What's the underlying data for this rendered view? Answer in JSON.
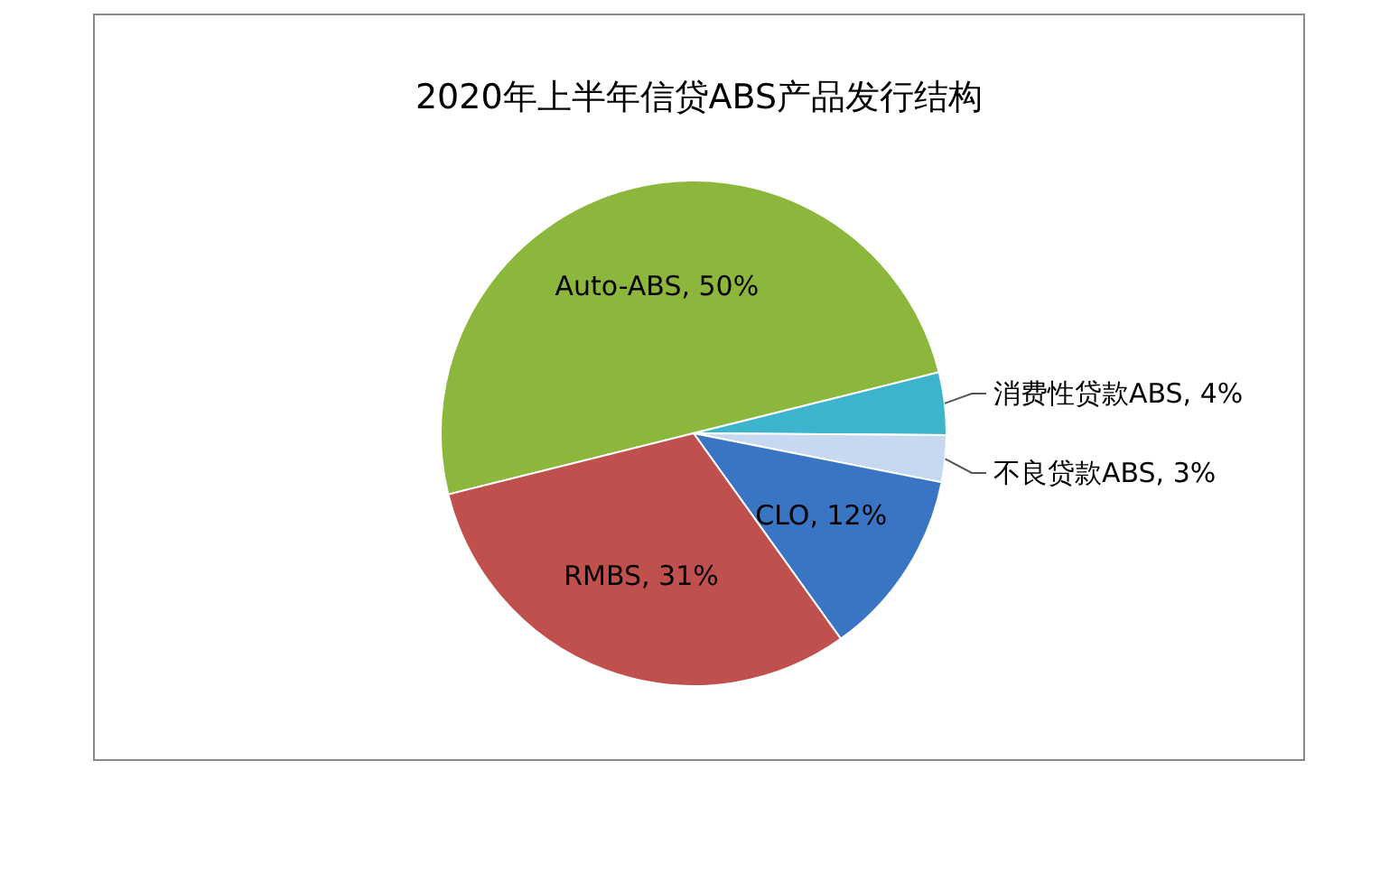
{
  "chart_data": {
    "type": "pie",
    "title": "2020年上半年信贷ABS产品发行结构",
    "categories": [
      "Auto-ABS",
      "消费性贷款ABS",
      "不良贷款ABS",
      "CLO",
      "RMBS"
    ],
    "values": [
      50,
      4,
      3,
      12,
      31
    ],
    "value_labels": [
      "50%",
      "4%",
      "3%",
      "12%",
      "31%"
    ],
    "colors": [
      "#8db63c",
      "#3cb4cc",
      "#c6d9f0",
      "#3a75c4",
      "#c0504d"
    ],
    "legend": false
  }
}
